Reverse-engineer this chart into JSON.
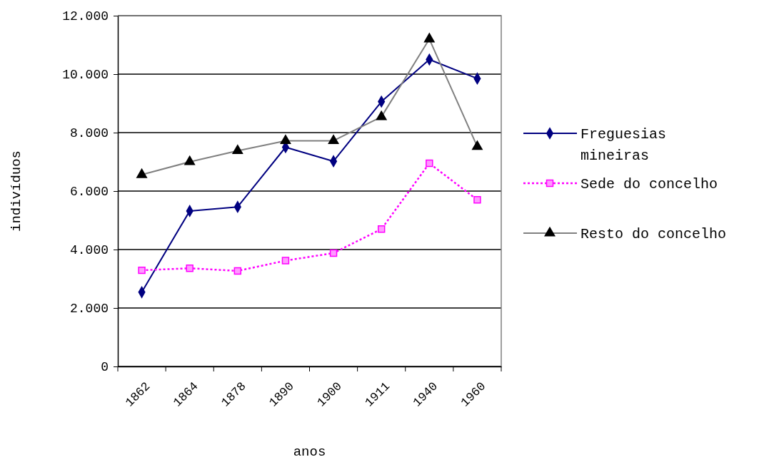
{
  "chart_data": {
    "type": "line",
    "xlabel": "anos",
    "ylabel": "indivíduos",
    "categories": [
      "1862",
      "1864",
      "1878",
      "1890",
      "1900",
      "1911",
      "1940",
      "1960"
    ],
    "ylim": [
      0,
      12000
    ],
    "yticks": [
      {
        "value": 0,
        "label": "0"
      },
      {
        "value": 2000,
        "label": "2.000"
      },
      {
        "value": 4000,
        "label": "4.000"
      },
      {
        "value": 6000,
        "label": "6.000"
      },
      {
        "value": 8000,
        "label": "8.000"
      },
      {
        "value": 10000,
        "label": "10.000"
      },
      {
        "value": 12000,
        "label": "12.000"
      }
    ],
    "grid": "y",
    "legend": "right",
    "series": [
      {
        "name": "Freguesias mineiras",
        "color": "#000080",
        "marker": "diamond",
        "line_style": "solid",
        "values": [
          2540,
          5320,
          5460,
          7500,
          7020,
          9060,
          10500,
          9850
        ]
      },
      {
        "name": "Sede do concelho",
        "color": "#ff00ff",
        "marker": "square",
        "line_style": "dotted",
        "values": [
          3290,
          3360,
          3270,
          3620,
          3880,
          4700,
          6950,
          5700
        ]
      },
      {
        "name": "Resto do concelho",
        "color": "#808080",
        "marker": "triangle",
        "line_style": "solid",
        "values": [
          6560,
          7000,
          7380,
          7720,
          7720,
          8540,
          11200,
          7520
        ]
      }
    ]
  }
}
